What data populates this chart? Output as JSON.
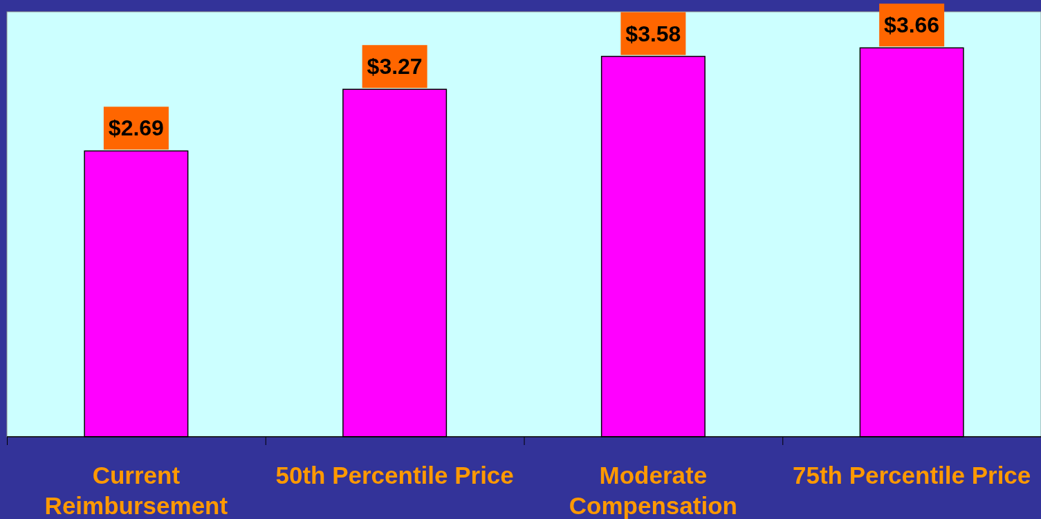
{
  "chart_data": {
    "type": "bar",
    "categories": [
      "Current Reimbursement",
      "50th Percentile Price",
      "Moderate Compensation",
      "75th Percentile Price"
    ],
    "values": [
      2.69,
      3.27,
      3.58,
      3.66
    ],
    "value_labels": [
      "$2.69",
      "$3.27",
      "$3.58",
      "$3.66"
    ],
    "color": "#ff00ff",
    "ylim": [
      0,
      4
    ],
    "tick_labels": "x"
  }
}
